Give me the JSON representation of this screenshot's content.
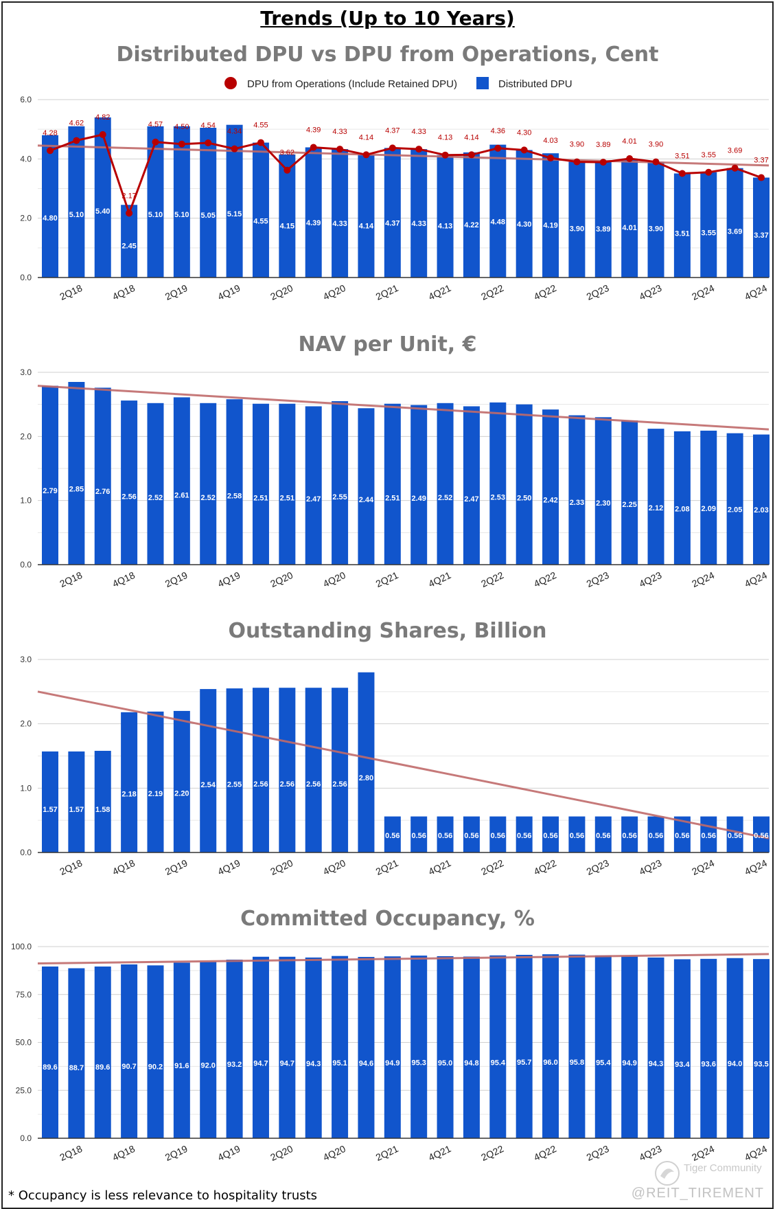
{
  "page": {
    "title": "Trends (Up to 10 Years)",
    "footnote": "* Occupancy is less relevance to hospitality trusts",
    "watermark": "@REIT_TIREMENT",
    "logo_text": "Tiger Community"
  },
  "colors": {
    "bar": "#1155cc",
    "line": "#b80000",
    "trend": "#c06a6a",
    "grid": "#cfcfcf",
    "title": "#7a7a7a"
  },
  "chart_data": [
    {
      "type": "bar",
      "title": "Distributed DPU vs DPU from Operations, Cent",
      "legend": {
        "placement": "top",
        "line_label": "DPU from Operations (Include Retained DPU)",
        "bar_label": "Distributed DPU"
      },
      "x_tick_labels": [
        "2Q18",
        "4Q18",
        "2Q19",
        "4Q19",
        "2Q20",
        "4Q20",
        "2Q21",
        "4Q21",
        "2Q22",
        "4Q22",
        "2Q23",
        "4Q23",
        "2Q24",
        "4Q24"
      ],
      "ylim": [
        0,
        6
      ],
      "y_ticks": [
        "0.0",
        "2.0",
        "4.0",
        "6.0"
      ],
      "y_tick_values": [
        0,
        2,
        4,
        6
      ],
      "series": [
        {
          "name": "Distributed DPU",
          "type": "bar",
          "values": [
            4.8,
            5.1,
            5.4,
            2.45,
            5.1,
            5.1,
            5.05,
            5.15,
            4.55,
            4.15,
            4.39,
            4.33,
            4.14,
            4.37,
            4.33,
            4.13,
            4.22,
            4.48,
            4.3,
            4.19,
            3.9,
            3.89,
            4.01,
            3.9,
            3.51,
            3.55,
            3.69,
            3.37
          ],
          "labels": [
            "4.80",
            "5.10",
            "5.40",
            "2.45",
            "5.10",
            "5.10",
            "5.05",
            "5.15",
            "4.55",
            "4.15",
            "4.39",
            "4.33",
            "4.14",
            "4.37",
            "4.33",
            "4.13",
            "4.22",
            "4.48",
            "4.30",
            "4.19",
            "3.90",
            "3.89",
            "4.01",
            "3.90",
            "3.51",
            "3.55",
            "3.69",
            "3.37"
          ]
        },
        {
          "name": "DPU from Operations (Include Retained DPU)",
          "type": "line",
          "values": [
            4.28,
            4.62,
            4.82,
            2.17,
            4.57,
            4.5,
            4.54,
            4.34,
            4.55,
            3.62,
            4.39,
            4.33,
            4.14,
            4.37,
            4.33,
            4.13,
            4.14,
            4.36,
            4.3,
            4.03,
            3.9,
            3.89,
            4.01,
            3.9,
            3.51,
            3.55,
            3.69,
            3.37
          ],
          "labels": [
            "4.28",
            "4.62",
            "4.82",
            "2.17",
            "4.57",
            "4.50",
            "4.54",
            "4.34",
            "4.55",
            "3.62",
            "4.39",
            "4.33",
            "4.14",
            "4.37",
            "4.33",
            "4.13",
            "4.14",
            "4.36",
            "4.30",
            "4.03",
            "3.90",
            "3.89",
            "4.01",
            "3.90",
            "3.51",
            "3.55",
            "3.69",
            "3.37"
          ]
        }
      ],
      "trendline": [
        4.45,
        3.78
      ]
    },
    {
      "type": "bar",
      "title": "NAV per Unit, €",
      "x_tick_labels": [
        "2Q18",
        "4Q18",
        "2Q19",
        "4Q19",
        "2Q20",
        "4Q20",
        "2Q21",
        "4Q21",
        "2Q22",
        "4Q22",
        "2Q23",
        "4Q23",
        "2Q24",
        "4Q24"
      ],
      "ylim": [
        0,
        3
      ],
      "y_ticks": [
        "0.0",
        "1.0",
        "2.0",
        "3.0"
      ],
      "y_tick_values": [
        0,
        1,
        2,
        3
      ],
      "series": [
        {
          "name": "NAV per Unit",
          "type": "bar",
          "values": [
            2.79,
            2.85,
            2.76,
            2.56,
            2.52,
            2.61,
            2.52,
            2.58,
            2.51,
            2.51,
            2.47,
            2.55,
            2.44,
            2.51,
            2.49,
            2.52,
            2.47,
            2.53,
            2.5,
            2.42,
            2.33,
            2.3,
            2.25,
            2.12,
            2.08,
            2.09,
            2.05,
            2.03
          ],
          "labels": [
            "2.79",
            "2.85",
            "2.76",
            "2.56",
            "2.52",
            "2.61",
            "2.52",
            "2.58",
            "2.51",
            "2.51",
            "2.47",
            "2.55",
            "2.44",
            "2.51",
            "2.49",
            "2.52",
            "2.47",
            "2.53",
            "2.50",
            "2.42",
            "2.33",
            "2.30",
            "2.25",
            "2.12",
            "2.08",
            "2.09",
            "2.05",
            "2.03"
          ]
        }
      ],
      "trendline": [
        2.79,
        2.11
      ]
    },
    {
      "type": "bar",
      "title": "Outstanding Shares, Billion",
      "x_tick_labels": [
        "2Q18",
        "4Q18",
        "2Q19",
        "4Q19",
        "2Q20",
        "4Q20",
        "2Q21",
        "4Q21",
        "2Q22",
        "4Q22",
        "2Q23",
        "4Q23",
        "2Q24",
        "4Q24"
      ],
      "ylim": [
        0,
        3
      ],
      "y_ticks": [
        "0.0",
        "1.0",
        "2.0",
        "3.0"
      ],
      "y_tick_values": [
        0,
        1,
        2,
        3
      ],
      "series": [
        {
          "name": "Outstanding Shares",
          "type": "bar",
          "values": [
            1.57,
            1.57,
            1.58,
            2.18,
            2.19,
            2.2,
            2.54,
            2.55,
            2.56,
            2.56,
            2.56,
            2.56,
            2.8,
            0.56,
            0.56,
            0.56,
            0.56,
            0.56,
            0.56,
            0.56,
            0.56,
            0.56,
            0.56,
            0.56,
            0.56,
            0.56,
            0.56,
            0.56
          ],
          "labels": [
            "1.57",
            "1.57",
            "1.58",
            "2.18",
            "2.19",
            "2.20",
            "2.54",
            "2.55",
            "2.56",
            "2.56",
            "2.56",
            "2.56",
            "2.80",
            "0.56",
            "0.56",
            "0.56",
            "0.56",
            "0.56",
            "0.56",
            "0.56",
            "0.56",
            "0.56",
            "0.56",
            "0.56",
            "0.56",
            "0.56",
            "0.56",
            "0.56"
          ]
        }
      ],
      "trendline": [
        2.5,
        0.22
      ]
    },
    {
      "type": "bar",
      "title": "Committed Occupancy, %",
      "x_tick_labels": [
        "2Q18",
        "4Q18",
        "2Q19",
        "4Q19",
        "2Q20",
        "4Q20",
        "2Q21",
        "4Q21",
        "2Q22",
        "4Q22",
        "2Q23",
        "4Q23",
        "2Q24",
        "4Q24"
      ],
      "ylim": [
        0,
        100
      ],
      "y_ticks": [
        "0.0",
        "25.0",
        "50.0",
        "75.0",
        "100.0"
      ],
      "y_tick_values": [
        0,
        25,
        50,
        75,
        100
      ],
      "series": [
        {
          "name": "Committed Occupancy",
          "type": "bar",
          "values": [
            89.6,
            88.7,
            89.6,
            90.7,
            90.2,
            91.6,
            92.0,
            93.2,
            94.7,
            94.7,
            94.3,
            95.1,
            94.6,
            94.9,
            95.3,
            95.0,
            94.8,
            95.4,
            95.7,
            96.0,
            95.8,
            95.4,
            94.9,
            94.3,
            93.4,
            93.6,
            94.0,
            93.5
          ],
          "labels": [
            "89.6",
            "88.7",
            "89.6",
            "90.7",
            "90.2",
            "91.6",
            "92.0",
            "93.2",
            "94.7",
            "94.7",
            "94.3",
            "95.1",
            "94.6",
            "94.9",
            "95.3",
            "95.0",
            "94.8",
            "95.4",
            "95.7",
            "96.0",
            "95.8",
            "95.4",
            "94.9",
            "94.3",
            "93.4",
            "93.6",
            "94.0",
            "93.5"
          ]
        }
      ],
      "trendline": [
        91.2,
        96.1
      ]
    }
  ]
}
